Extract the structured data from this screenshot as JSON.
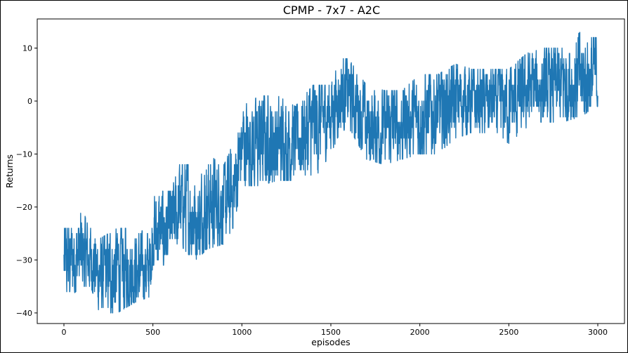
{
  "chart_data": {
    "type": "line",
    "title": "CPMP - 7x7 - A2C",
    "xlabel": "episodes",
    "ylabel": "Returns",
    "xlim": [
      -150,
      3150
    ],
    "ylim": [
      -42,
      15.5
    ],
    "x_ticks": [
      0,
      500,
      1000,
      1500,
      2000,
      2500,
      3000
    ],
    "y_ticks": [
      -40,
      -30,
      -20,
      -10,
      0,
      10
    ],
    "x_tick_labels": [
      "0",
      "500",
      "1000",
      "1500",
      "2000",
      "2500",
      "3000"
    ],
    "y_tick_labels": [
      "−40",
      "−30",
      "−20",
      "−10",
      "0",
      "10"
    ],
    "grid": false,
    "series": [
      {
        "color": "#1f77b4",
        "x_start": 0,
        "x_end": 3000,
        "trend": [
          {
            "x": 0,
            "mean": -31,
            "low": -38,
            "high": -24
          },
          {
            "x": 100,
            "mean": -29,
            "low": -35,
            "high": -21
          },
          {
            "x": 150,
            "mean": -30,
            "low": -35,
            "high": -23
          },
          {
            "x": 200,
            "mean": -33,
            "low": -40,
            "high": -26
          },
          {
            "x": 300,
            "mean": -32,
            "low": -40,
            "high": -24
          },
          {
            "x": 400,
            "mean": -32,
            "low": -38,
            "high": -24
          },
          {
            "x": 480,
            "mean": -32,
            "low": -37,
            "high": -25
          },
          {
            "x": 500,
            "mean": -25,
            "low": -31,
            "high": -17
          },
          {
            "x": 600,
            "mean": -24,
            "low": -31,
            "high": -17
          },
          {
            "x": 650,
            "mean": -20,
            "low": -27,
            "high": -12
          },
          {
            "x": 700,
            "mean": -20,
            "low": -29,
            "high": -12
          },
          {
            "x": 750,
            "mean": -23,
            "low": -30,
            "high": -17
          },
          {
            "x": 800,
            "mean": -20,
            "low": -28,
            "high": -10
          },
          {
            "x": 900,
            "mean": -19,
            "low": -27,
            "high": -12
          },
          {
            "x": 950,
            "mean": -18,
            "low": -24,
            "high": -8
          },
          {
            "x": 1000,
            "mean": -8,
            "low": -16,
            "high": -1
          },
          {
            "x": 1100,
            "mean": -8,
            "low": -16,
            "high": 1
          },
          {
            "x": 1200,
            "mean": -8,
            "low": -15,
            "high": 1
          },
          {
            "x": 1300,
            "mean": -7,
            "low": -15,
            "high": -1
          },
          {
            "x": 1400,
            "mean": -5,
            "low": -15,
            "high": 3
          },
          {
            "x": 1500,
            "mean": -2,
            "low": -10,
            "high": 3
          },
          {
            "x": 1550,
            "mean": 1,
            "low": -6,
            "high": 8
          },
          {
            "x": 1600,
            "mean": 2,
            "low": -5,
            "high": 8
          },
          {
            "x": 1700,
            "mean": -5,
            "low": -11,
            "high": 3
          },
          {
            "x": 1800,
            "mean": -5,
            "low": -12,
            "high": 2
          },
          {
            "x": 1900,
            "mean": -4,
            "low": -11,
            "high": 2
          },
          {
            "x": 2000,
            "mean": -3,
            "low": -10,
            "high": 5
          },
          {
            "x": 2100,
            "mean": -2,
            "low": -10,
            "high": 5
          },
          {
            "x": 2200,
            "mean": 0,
            "low": -7,
            "high": 7
          },
          {
            "x": 2300,
            "mean": 0,
            "low": -6,
            "high": 6
          },
          {
            "x": 2400,
            "mean": 0,
            "low": -6,
            "high": 6
          },
          {
            "x": 2500,
            "mean": -1,
            "low": -8,
            "high": 6
          },
          {
            "x": 2600,
            "mean": 2,
            "low": -5,
            "high": 9
          },
          {
            "x": 2700,
            "mean": 3,
            "low": -4,
            "high": 10
          },
          {
            "x": 2800,
            "mean": 3,
            "low": -4,
            "high": 10
          },
          {
            "x": 2900,
            "mean": 4,
            "low": -3,
            "high": 13
          },
          {
            "x": 3000,
            "mean": 5,
            "low": -1,
            "high": 13
          }
        ]
      }
    ]
  }
}
